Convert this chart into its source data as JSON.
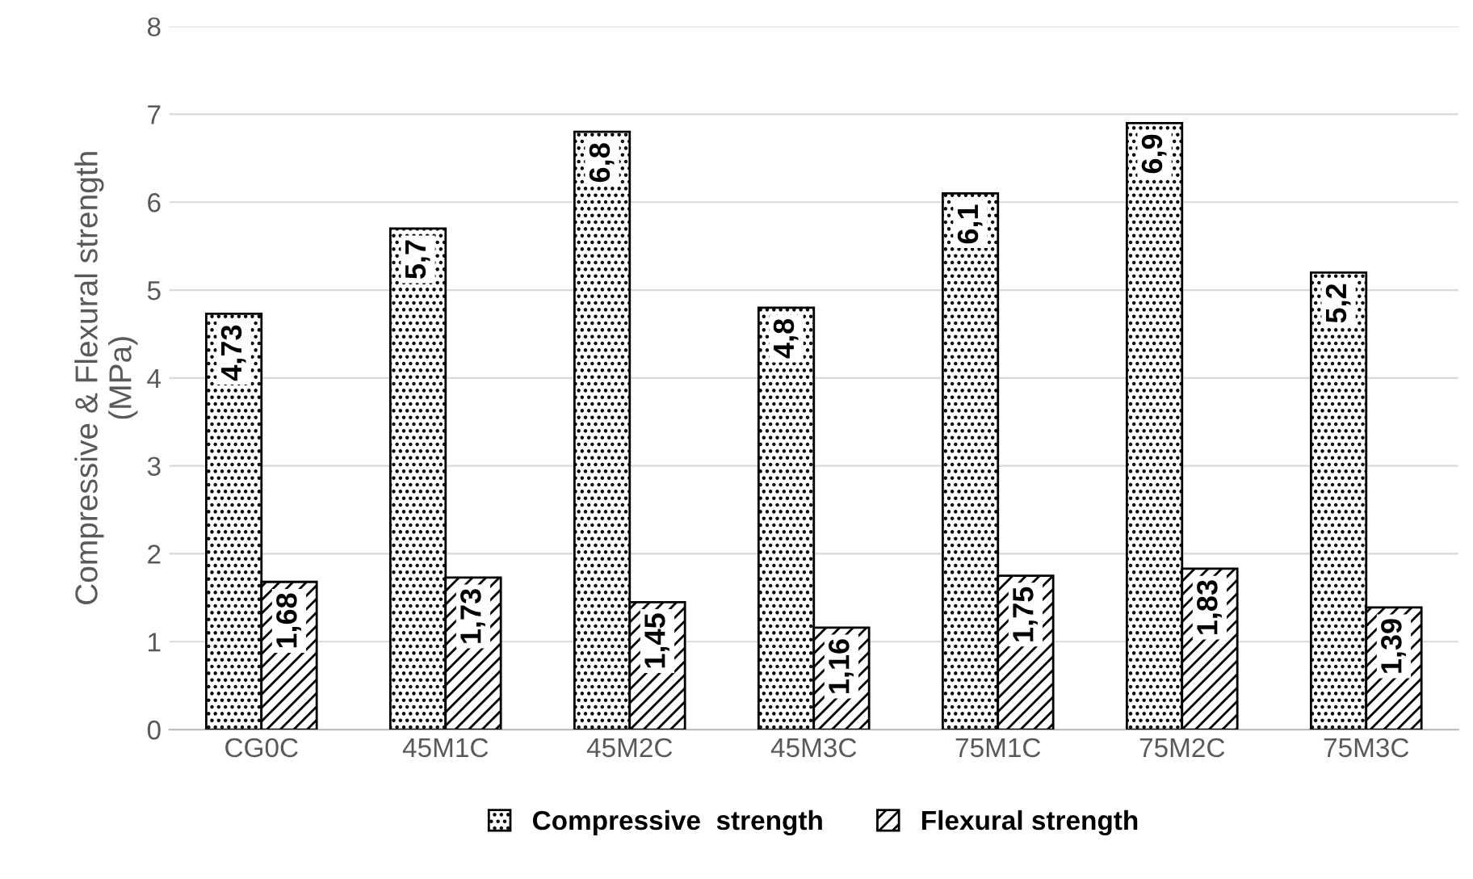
{
  "chart_data": {
    "type": "bar",
    "ylabel": "Compressive & Flexural strength\n(MPa)",
    "categories": [
      "CG0C",
      "45M1C",
      "45M2C",
      "45M3C",
      "75M1C",
      "75M2C",
      "75M3C"
    ],
    "series": [
      {
        "name": "Compressive  strength",
        "color": "#000000",
        "values": [
          4.73,
          5.7,
          6.8,
          4.8,
          6.1,
          6.9,
          5.2
        ],
        "value_labels": [
          "4,73",
          "5,7",
          "6,8",
          "4,8",
          "6,1",
          "6,9",
          "5,2"
        ]
      },
      {
        "name": "Flexural strength",
        "color": "#000000",
        "values": [
          1.68,
          1.73,
          1.45,
          1.16,
          1.75,
          1.83,
          1.39
        ],
        "value_labels": [
          "1,68",
          "1,73",
          "1,45",
          "1,16",
          "1,75",
          "1,83",
          "1,39"
        ]
      }
    ],
    "ylim": [
      0,
      8
    ],
    "yticks": [
      0,
      1,
      2,
      3,
      4,
      5,
      6,
      7,
      8
    ],
    "grid": "y",
    "legend": "bottom"
  }
}
